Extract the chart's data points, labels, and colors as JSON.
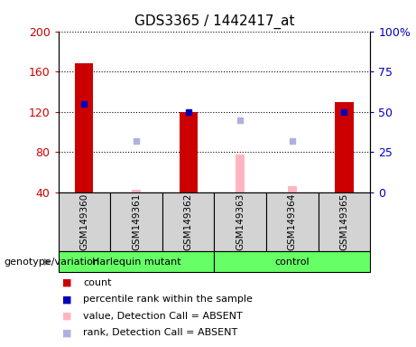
{
  "title": "GDS3365 / 1442417_at",
  "samples": [
    "GSM149360",
    "GSM149361",
    "GSM149362",
    "GSM149363",
    "GSM149364",
    "GSM149365"
  ],
  "group1_name": "Harlequin mutant",
  "group2_name": "control",
  "group1_indices": [
    0,
    1,
    2
  ],
  "group2_indices": [
    3,
    4,
    5
  ],
  "group_color": "#66ff66",
  "sample_box_color": "#d3d3d3",
  "red_bars": [
    168,
    null,
    120,
    null,
    null,
    130
  ],
  "blue_squares": [
    128,
    null,
    120,
    null,
    null,
    120
  ],
  "pink_bars": [
    null,
    43,
    null,
    78,
    46,
    null
  ],
  "purple_squares": [
    null,
    91,
    null,
    112,
    91,
    null
  ],
  "ylim_left": [
    40,
    200
  ],
  "ylim_right": [
    0,
    100
  ],
  "yticks_left": [
    40,
    80,
    120,
    160,
    200
  ],
  "yticks_right": [
    0,
    25,
    50,
    75,
    100
  ],
  "left_tick_labels": [
    "40",
    "80",
    "120",
    "160",
    "200"
  ],
  "right_tick_labels": [
    "0",
    "25",
    "50",
    "75",
    "100%"
  ],
  "red_color": "#cc0000",
  "blue_color": "#0000bb",
  "pink_color": "#ffb6c1",
  "purple_color": "#b0b0e0",
  "bar_width": 0.35,
  "absent_bar_width": 0.18,
  "legend_items": [
    "count",
    "percentile rank within the sample",
    "value, Detection Call = ABSENT",
    "rank, Detection Call = ABSENT"
  ],
  "legend_colors": [
    "#cc0000",
    "#0000bb",
    "#ffb6c1",
    "#b0b0e0"
  ],
  "genotype_label": "genotype/variation"
}
